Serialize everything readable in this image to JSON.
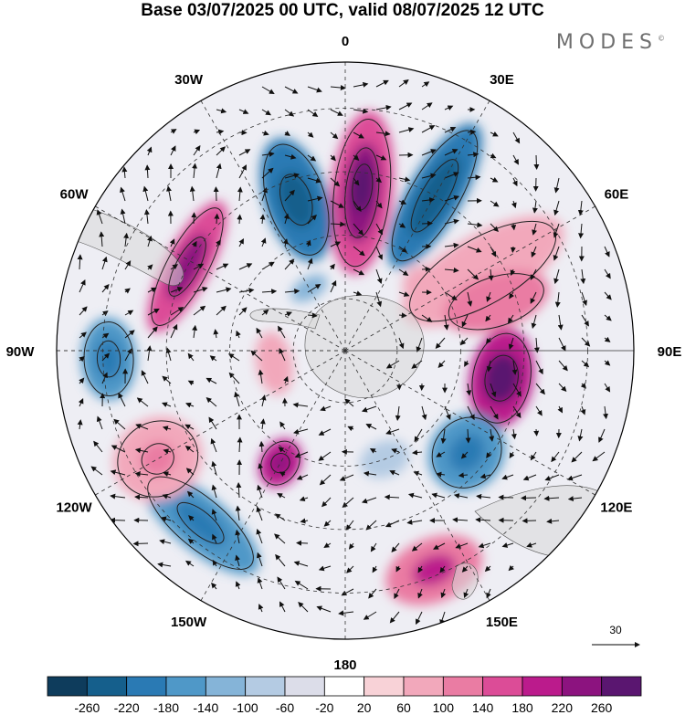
{
  "title": "Base 03/07/2025 00 UTC, valid 08/07/2025 12 UTC",
  "brand": "MODES",
  "brand_mark": "©",
  "map": {
    "projection": "south-polar-stereographic",
    "longitude_labels": [
      {
        "text": "0",
        "lon": 0
      },
      {
        "text": "30E",
        "lon": 30
      },
      {
        "text": "60E",
        "lon": 60
      },
      {
        "text": "90E",
        "lon": 90
      },
      {
        "text": "120E",
        "lon": 120
      },
      {
        "text": "150E",
        "lon": 150
      },
      {
        "text": "180",
        "lon": 180
      },
      {
        "text": "150W",
        "lon": -150
      },
      {
        "text": "120W",
        "lon": -120
      },
      {
        "text": "90W",
        "lon": -90
      },
      {
        "text": "60W",
        "lon": -60
      },
      {
        "text": "30W",
        "lon": -30
      }
    ],
    "reference_vector": "30"
  },
  "colorbar": {
    "labels": [
      "-260",
      "-220",
      "-180",
      "-140",
      "-100",
      "-60",
      "-20",
      "20",
      "60",
      "100",
      "140",
      "180",
      "220",
      "260"
    ],
    "colors": [
      "#0e3c5c",
      "#155f8c",
      "#2a7ab4",
      "#4f98c8",
      "#85b4d8",
      "#b4cbe3",
      "#dcdde9",
      "#ffffff",
      "#f8d2d7",
      "#f2a8bb",
      "#ea7ca3",
      "#dc4c97",
      "#bb1b8c",
      "#8c137f",
      "#5a1670"
    ]
  },
  "colors": {
    "land": "#d8d8d8",
    "grid": "#333333",
    "vectors": "#111111"
  }
}
